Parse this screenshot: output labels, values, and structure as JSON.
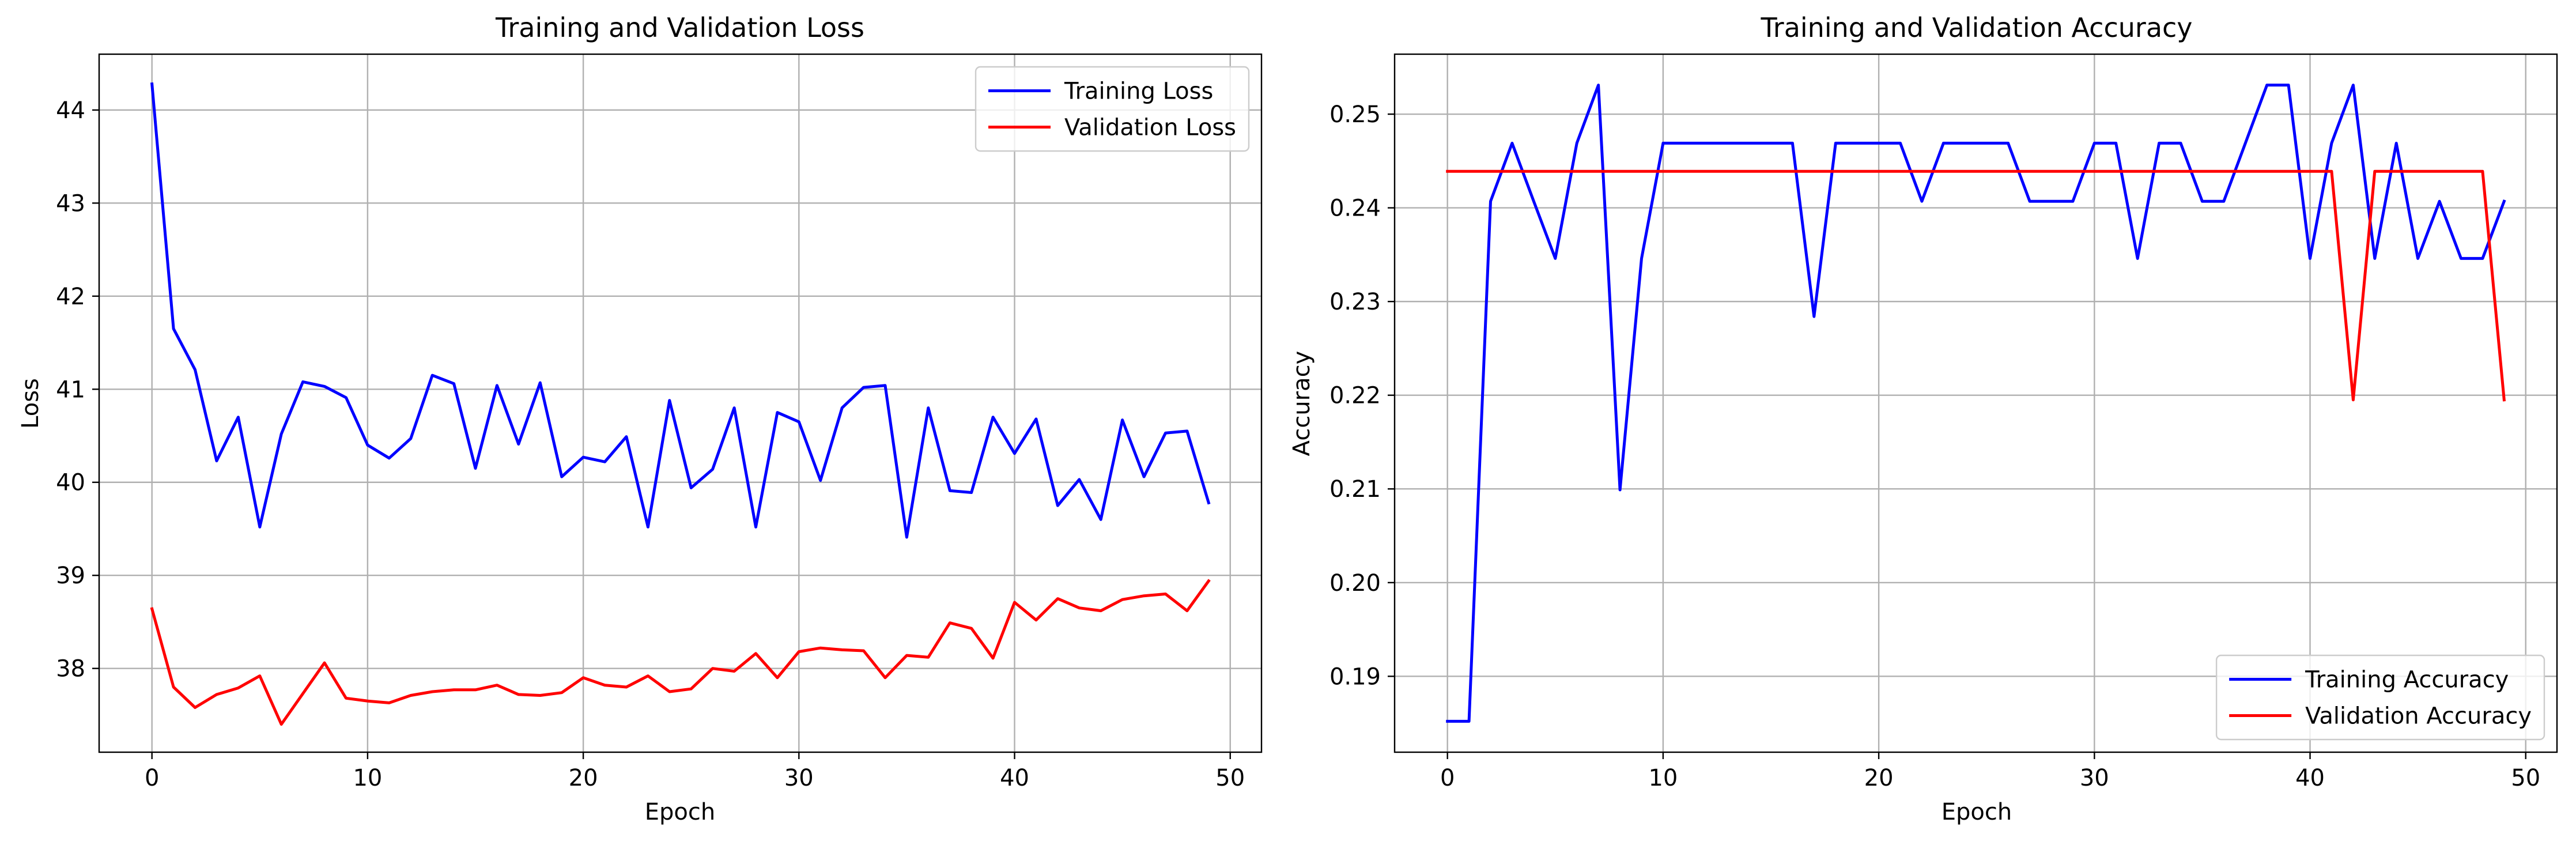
{
  "chart_data": [
    {
      "type": "line",
      "title": "Training and Validation Loss",
      "xlabel": "Epoch",
      "ylabel": "Loss",
      "xlim": [
        -2.45,
        51.45
      ],
      "ylim": [
        37.1,
        44.6
      ],
      "xticks": [
        0,
        10,
        20,
        30,
        40,
        50
      ],
      "yticks": [
        38,
        39,
        40,
        41,
        42,
        43,
        44
      ],
      "grid": true,
      "legend_position": "top-right",
      "x": [
        0,
        1,
        2,
        3,
        4,
        5,
        6,
        7,
        8,
        9,
        10,
        11,
        12,
        13,
        14,
        15,
        16,
        17,
        18,
        19,
        20,
        21,
        22,
        23,
        24,
        25,
        26,
        27,
        28,
        29,
        30,
        31,
        32,
        33,
        34,
        35,
        36,
        37,
        38,
        39,
        40,
        41,
        42,
        43,
        44,
        45,
        46,
        47,
        48,
        49
      ],
      "series": [
        {
          "name": "Training Loss",
          "color": "#0000ff",
          "values": [
            44.28,
            41.65,
            41.21,
            40.23,
            40.7,
            39.52,
            40.52,
            41.08,
            41.03,
            40.91,
            40.4,
            40.26,
            40.47,
            41.15,
            41.06,
            40.15,
            41.04,
            40.41,
            41.07,
            40.06,
            40.27,
            40.22,
            40.49,
            39.52,
            40.88,
            39.94,
            40.14,
            40.8,
            39.52,
            40.75,
            40.65,
            40.02,
            40.8,
            41.02,
            41.04,
            39.41,
            40.8,
            39.91,
            39.89,
            40.7,
            40.31,
            40.68,
            39.75,
            40.03,
            39.6,
            40.67,
            40.06,
            40.53,
            40.55,
            39.78
          ]
        },
        {
          "name": "Validation Loss",
          "color": "#ff0000",
          "values": [
            38.64,
            37.8,
            37.58,
            37.72,
            37.79,
            37.92,
            37.4,
            37.73,
            38.06,
            37.68,
            37.65,
            37.63,
            37.71,
            37.75,
            37.77,
            37.77,
            37.82,
            37.72,
            37.71,
            37.74,
            37.9,
            37.82,
            37.8,
            37.92,
            37.75,
            37.78,
            38.0,
            37.97,
            38.16,
            37.9,
            38.18,
            38.22,
            38.2,
            38.19,
            37.9,
            38.14,
            38.12,
            38.49,
            38.43,
            38.11,
            38.71,
            38.52,
            38.75,
            38.65,
            38.62,
            38.74,
            38.78,
            38.8,
            38.62,
            38.94
          ]
        }
      ]
    },
    {
      "type": "line",
      "title": "Training and Validation Accuracy",
      "xlabel": "Epoch",
      "ylabel": "Accuracy",
      "xlim": [
        -2.45,
        51.45
      ],
      "ylim": [
        0.1819,
        0.2564
      ],
      "xticks": [
        0,
        10,
        20,
        30,
        40,
        50
      ],
      "yticks": [
        0.19,
        0.2,
        0.21,
        0.22,
        0.23,
        0.24,
        0.25
      ],
      "ytick_labels": [
        "0.19",
        "0.20",
        "0.21",
        "0.22",
        "0.23",
        "0.24",
        "0.25"
      ],
      "grid": true,
      "legend_position": "bottom-right",
      "x": [
        0,
        1,
        2,
        3,
        4,
        5,
        6,
        7,
        8,
        9,
        10,
        11,
        12,
        13,
        14,
        15,
        16,
        17,
        18,
        19,
        20,
        21,
        22,
        23,
        24,
        25,
        26,
        27,
        28,
        29,
        30,
        31,
        32,
        33,
        34,
        35,
        36,
        37,
        38,
        39,
        40,
        41,
        42,
        43,
        44,
        45,
        46,
        47,
        48,
        49
      ],
      "series": [
        {
          "name": "Training Accuracy",
          "color": "#0000ff",
          "values": [
            0.1852,
            0.1852,
            0.2407,
            0.2469,
            0.2407,
            0.2346,
            0.2469,
            0.2531,
            0.2099,
            0.2346,
            0.2469,
            0.2469,
            0.2469,
            0.2469,
            0.2469,
            0.2469,
            0.2469,
            0.2284,
            0.2469,
            0.2469,
            0.2469,
            0.2469,
            0.2407,
            0.2469,
            0.2469,
            0.2469,
            0.2469,
            0.2407,
            0.2407,
            0.2407,
            0.2469,
            0.2469,
            0.2346,
            0.2469,
            0.2469,
            0.2407,
            0.2407,
            0.2469,
            0.2531,
            0.2531,
            0.2346,
            0.2469,
            0.2531,
            0.2346,
            0.2469,
            0.2346,
            0.2407,
            0.2346,
            0.2346,
            0.2407
          ]
        },
        {
          "name": "Validation Accuracy",
          "color": "#ff0000",
          "values": [
            0.2439,
            0.2439,
            0.2439,
            0.2439,
            0.2439,
            0.2439,
            0.2439,
            0.2439,
            0.2439,
            0.2439,
            0.2439,
            0.2439,
            0.2439,
            0.2439,
            0.2439,
            0.2439,
            0.2439,
            0.2439,
            0.2439,
            0.2439,
            0.2439,
            0.2439,
            0.2439,
            0.2439,
            0.2439,
            0.2439,
            0.2439,
            0.2439,
            0.2439,
            0.2439,
            0.2439,
            0.2439,
            0.2439,
            0.2439,
            0.2439,
            0.2439,
            0.2439,
            0.2439,
            0.2439,
            0.2439,
            0.2439,
            0.2439,
            0.2195,
            0.2439,
            0.2439,
            0.2439,
            0.2439,
            0.2439,
            0.2439,
            0.2195
          ]
        }
      ]
    }
  ]
}
